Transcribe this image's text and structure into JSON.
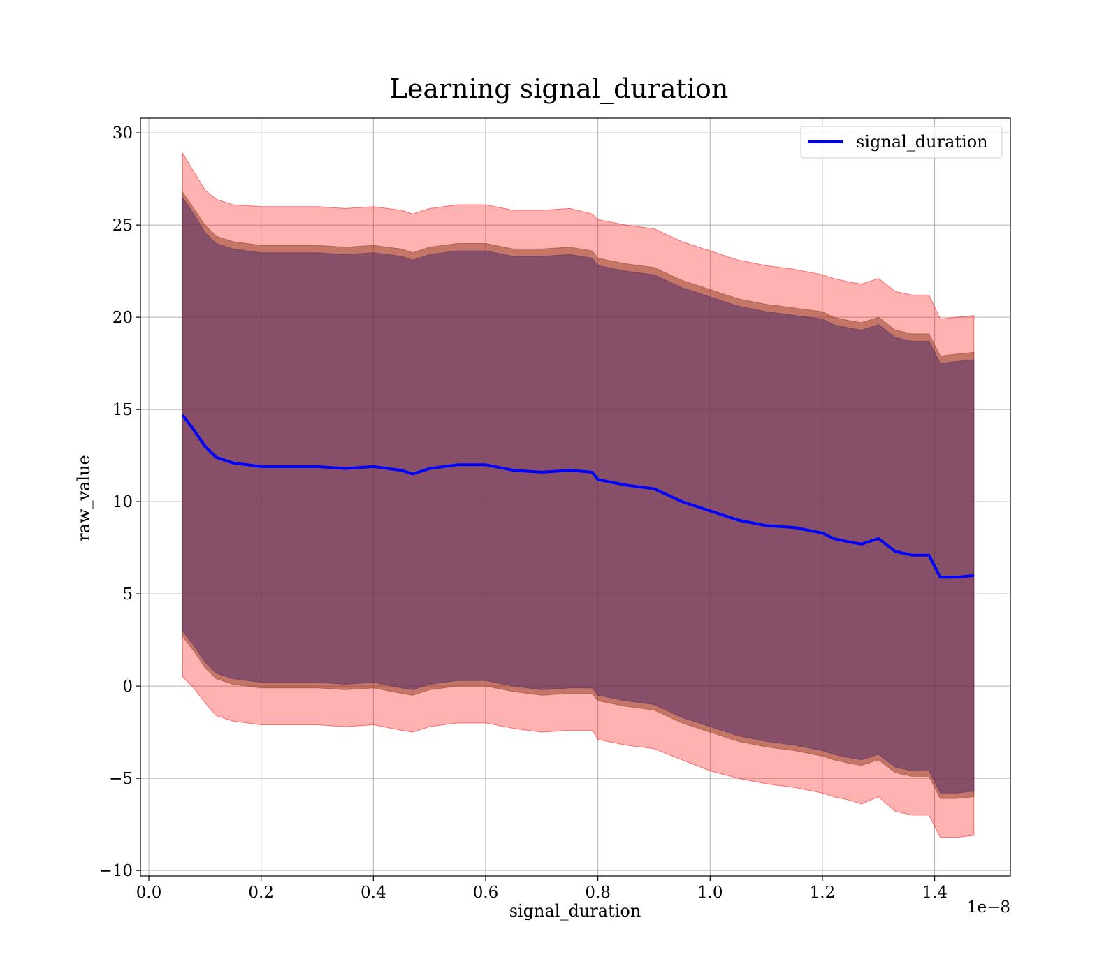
{
  "chart_data": {
    "type": "line",
    "title": "Learning signal_duration",
    "xlabel": "signal_duration",
    "ylabel": "raw_value",
    "x_offset_label": "1e−8",
    "xlim": [
      -0.015,
      1.535
    ],
    "ylim": [
      -10.3,
      30.8
    ],
    "x_ticks": [
      0.0,
      0.2,
      0.4,
      0.6,
      0.8,
      1.0,
      1.2,
      1.4
    ],
    "x_tick_labels": [
      "0.0",
      "0.2",
      "0.4",
      "0.6",
      "0.8",
      "1.0",
      "1.2",
      "1.4"
    ],
    "y_ticks": [
      -10,
      -5,
      0,
      5,
      10,
      15,
      20,
      25,
      30
    ],
    "y_tick_labels": [
      "−10",
      "−5",
      "0",
      "5",
      "10",
      "15",
      "20",
      "25",
      "30"
    ],
    "grid": true,
    "legend_position": "top-right",
    "series": [
      {
        "name": "signal_duration",
        "color": "#0000ff",
        "x": [
          0.06,
          0.08,
          0.1,
          0.12,
          0.15,
          0.2,
          0.25,
          0.3,
          0.35,
          0.4,
          0.45,
          0.47,
          0.5,
          0.55,
          0.6,
          0.65,
          0.7,
          0.75,
          0.79,
          0.8,
          0.85,
          0.9,
          0.95,
          1.0,
          1.05,
          1.1,
          1.15,
          1.2,
          1.22,
          1.25,
          1.27,
          1.3,
          1.33,
          1.36,
          1.39,
          1.41,
          1.44,
          1.47
        ],
        "y": [
          14.7,
          13.9,
          13.0,
          12.4,
          12.1,
          11.9,
          11.9,
          11.9,
          11.8,
          11.9,
          11.7,
          11.5,
          11.8,
          12.0,
          12.0,
          11.7,
          11.6,
          11.7,
          11.6,
          11.2,
          10.9,
          10.7,
          10.0,
          9.5,
          9.0,
          8.7,
          8.6,
          8.3,
          8.0,
          7.8,
          7.7,
          8.0,
          7.3,
          7.1,
          7.1,
          5.9,
          5.9,
          6.0
        ]
      }
    ],
    "bands": [
      {
        "color": "#ff0000",
        "opacity": 0.3,
        "x": [
          0.06,
          0.08,
          0.1,
          0.12,
          0.15,
          0.2,
          0.25,
          0.3,
          0.35,
          0.4,
          0.45,
          0.47,
          0.5,
          0.55,
          0.6,
          0.65,
          0.7,
          0.75,
          0.79,
          0.8,
          0.85,
          0.9,
          0.95,
          1.0,
          1.05,
          1.1,
          1.15,
          1.2,
          1.22,
          1.25,
          1.27,
          1.3,
          1.33,
          1.36,
          1.39,
          1.41,
          1.44,
          1.47
        ],
        "upper": [
          28.9,
          27.9,
          26.9,
          26.4,
          26.1,
          26.0,
          26.0,
          26.0,
          25.9,
          26.0,
          25.8,
          25.6,
          25.9,
          26.1,
          26.1,
          25.8,
          25.8,
          25.9,
          25.6,
          25.3,
          25.0,
          24.8,
          24.1,
          23.6,
          23.1,
          22.8,
          22.6,
          22.3,
          22.1,
          21.9,
          21.8,
          22.1,
          21.4,
          21.2,
          21.2,
          19.9,
          20.0,
          20.1
        ],
        "lower": [
          0.5,
          -0.1,
          -0.9,
          -1.6,
          -1.9,
          -2.1,
          -2.1,
          -2.1,
          -2.2,
          -2.1,
          -2.4,
          -2.5,
          -2.2,
          -2.0,
          -2.0,
          -2.3,
          -2.5,
          -2.4,
          -2.4,
          -2.9,
          -3.2,
          -3.4,
          -4.0,
          -4.6,
          -5.0,
          -5.3,
          -5.5,
          -5.8,
          -6.0,
          -6.2,
          -6.4,
          -6.0,
          -6.8,
          -7.0,
          -7.0,
          -8.2,
          -8.2,
          -8.1
        ]
      },
      {
        "color": "#8b3a1c",
        "opacity": 0.5,
        "x": [
          0.06,
          0.08,
          0.1,
          0.12,
          0.15,
          0.2,
          0.25,
          0.3,
          0.35,
          0.4,
          0.45,
          0.47,
          0.5,
          0.55,
          0.6,
          0.65,
          0.7,
          0.75,
          0.79,
          0.8,
          0.85,
          0.9,
          0.95,
          1.0,
          1.05,
          1.1,
          1.15,
          1.2,
          1.22,
          1.25,
          1.27,
          1.3,
          1.33,
          1.36,
          1.39,
          1.41,
          1.44,
          1.47
        ],
        "upper": [
          26.8,
          25.9,
          25.0,
          24.4,
          24.1,
          23.9,
          23.9,
          23.9,
          23.8,
          23.9,
          23.7,
          23.5,
          23.8,
          24.0,
          24.0,
          23.7,
          23.7,
          23.8,
          23.6,
          23.2,
          22.9,
          22.7,
          22.0,
          21.5,
          21.0,
          20.7,
          20.5,
          20.3,
          20.0,
          19.8,
          19.7,
          20.0,
          19.3,
          19.1,
          19.1,
          17.9,
          18.0,
          18.1
        ],
        "lower": [
          2.7,
          1.9,
          1.0,
          0.4,
          0.1,
          -0.1,
          -0.1,
          -0.1,
          -0.2,
          -0.1,
          -0.4,
          -0.5,
          -0.2,
          0.0,
          0.0,
          -0.3,
          -0.5,
          -0.4,
          -0.4,
          -0.8,
          -1.1,
          -1.3,
          -2.0,
          -2.5,
          -3.0,
          -3.3,
          -3.5,
          -3.8,
          -4.0,
          -4.2,
          -4.3,
          -4.0,
          -4.7,
          -4.9,
          -4.9,
          -6.1,
          -6.1,
          -6.0
        ]
      },
      {
        "color": "#4a2a6a",
        "opacity": 0.5,
        "x": [
          0.06,
          0.08,
          0.1,
          0.12,
          0.15,
          0.2,
          0.25,
          0.3,
          0.35,
          0.4,
          0.45,
          0.47,
          0.5,
          0.55,
          0.6,
          0.65,
          0.7,
          0.75,
          0.79,
          0.8,
          0.85,
          0.9,
          0.95,
          1.0,
          1.05,
          1.1,
          1.15,
          1.2,
          1.22,
          1.25,
          1.27,
          1.3,
          1.33,
          1.36,
          1.39,
          1.41,
          1.44,
          1.47
        ],
        "upper": [
          26.5,
          25.6,
          24.6,
          24.0,
          23.7,
          23.5,
          23.5,
          23.5,
          23.4,
          23.5,
          23.3,
          23.1,
          23.4,
          23.6,
          23.6,
          23.3,
          23.3,
          23.4,
          23.2,
          22.8,
          22.5,
          22.3,
          21.6,
          21.1,
          20.6,
          20.3,
          20.1,
          19.9,
          19.6,
          19.4,
          19.3,
          19.6,
          18.9,
          18.7,
          18.7,
          17.5,
          17.6,
          17.7
        ],
        "lower": [
          3.0,
          2.2,
          1.3,
          0.7,
          0.4,
          0.2,
          0.2,
          0.2,
          0.1,
          0.2,
          -0.1,
          -0.2,
          0.1,
          0.3,
          0.3,
          0.0,
          -0.2,
          -0.1,
          -0.1,
          -0.5,
          -0.8,
          -1.0,
          -1.7,
          -2.2,
          -2.7,
          -3.0,
          -3.2,
          -3.5,
          -3.7,
          -3.9,
          -4.0,
          -3.7,
          -4.4,
          -4.6,
          -4.6,
          -5.8,
          -5.8,
          -5.7
        ]
      }
    ]
  }
}
